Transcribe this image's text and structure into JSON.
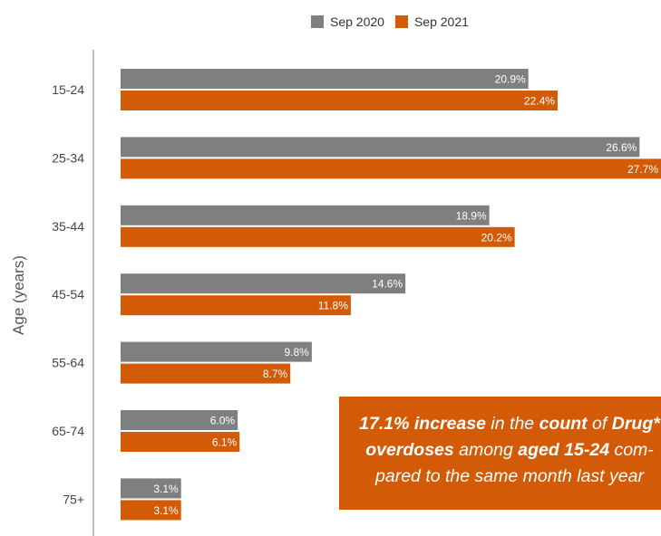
{
  "colors": {
    "sep2020": "#7f7f7f",
    "sep2021": "#d35a06",
    "axis": "#7f7f7f",
    "text": "#444444"
  },
  "chart_data": {
    "type": "bar",
    "orientation": "horizontal",
    "categories": [
      "15-24",
      "25-34",
      "35-44",
      "45-54",
      "55-64",
      "65-74",
      "75+"
    ],
    "series": [
      {
        "name": "Sep 2020",
        "values": [
          20.9,
          26.6,
          18.9,
          14.6,
          9.8,
          6.0,
          3.1
        ],
        "labels": [
          "20.9%",
          "26.6%",
          "18.9%",
          "14.6%",
          "9.8%",
          "6.0%",
          "3.1%"
        ]
      },
      {
        "name": "Sep 2021",
        "values": [
          22.4,
          27.7,
          20.2,
          11.8,
          8.7,
          6.1,
          3.1
        ],
        "labels": [
          "22.4%",
          "27.7%",
          "20.2%",
          "11.8%",
          "8.7%",
          "6.1%",
          "3.1%"
        ]
      }
    ],
    "ylabel": "Age (years)",
    "xlabel": "",
    "legend_position": "top",
    "grid": false,
    "data_labels": "inside-end"
  },
  "callout": {
    "part1": "17.1% increase",
    "part2": " in the ",
    "part3": "count",
    "part4": " of ",
    "part5": "Drug*",
    "part6": "overdoses",
    "part7": " among ",
    "part8": "aged 15-24",
    "part9": " com-pared to the same month last year"
  }
}
